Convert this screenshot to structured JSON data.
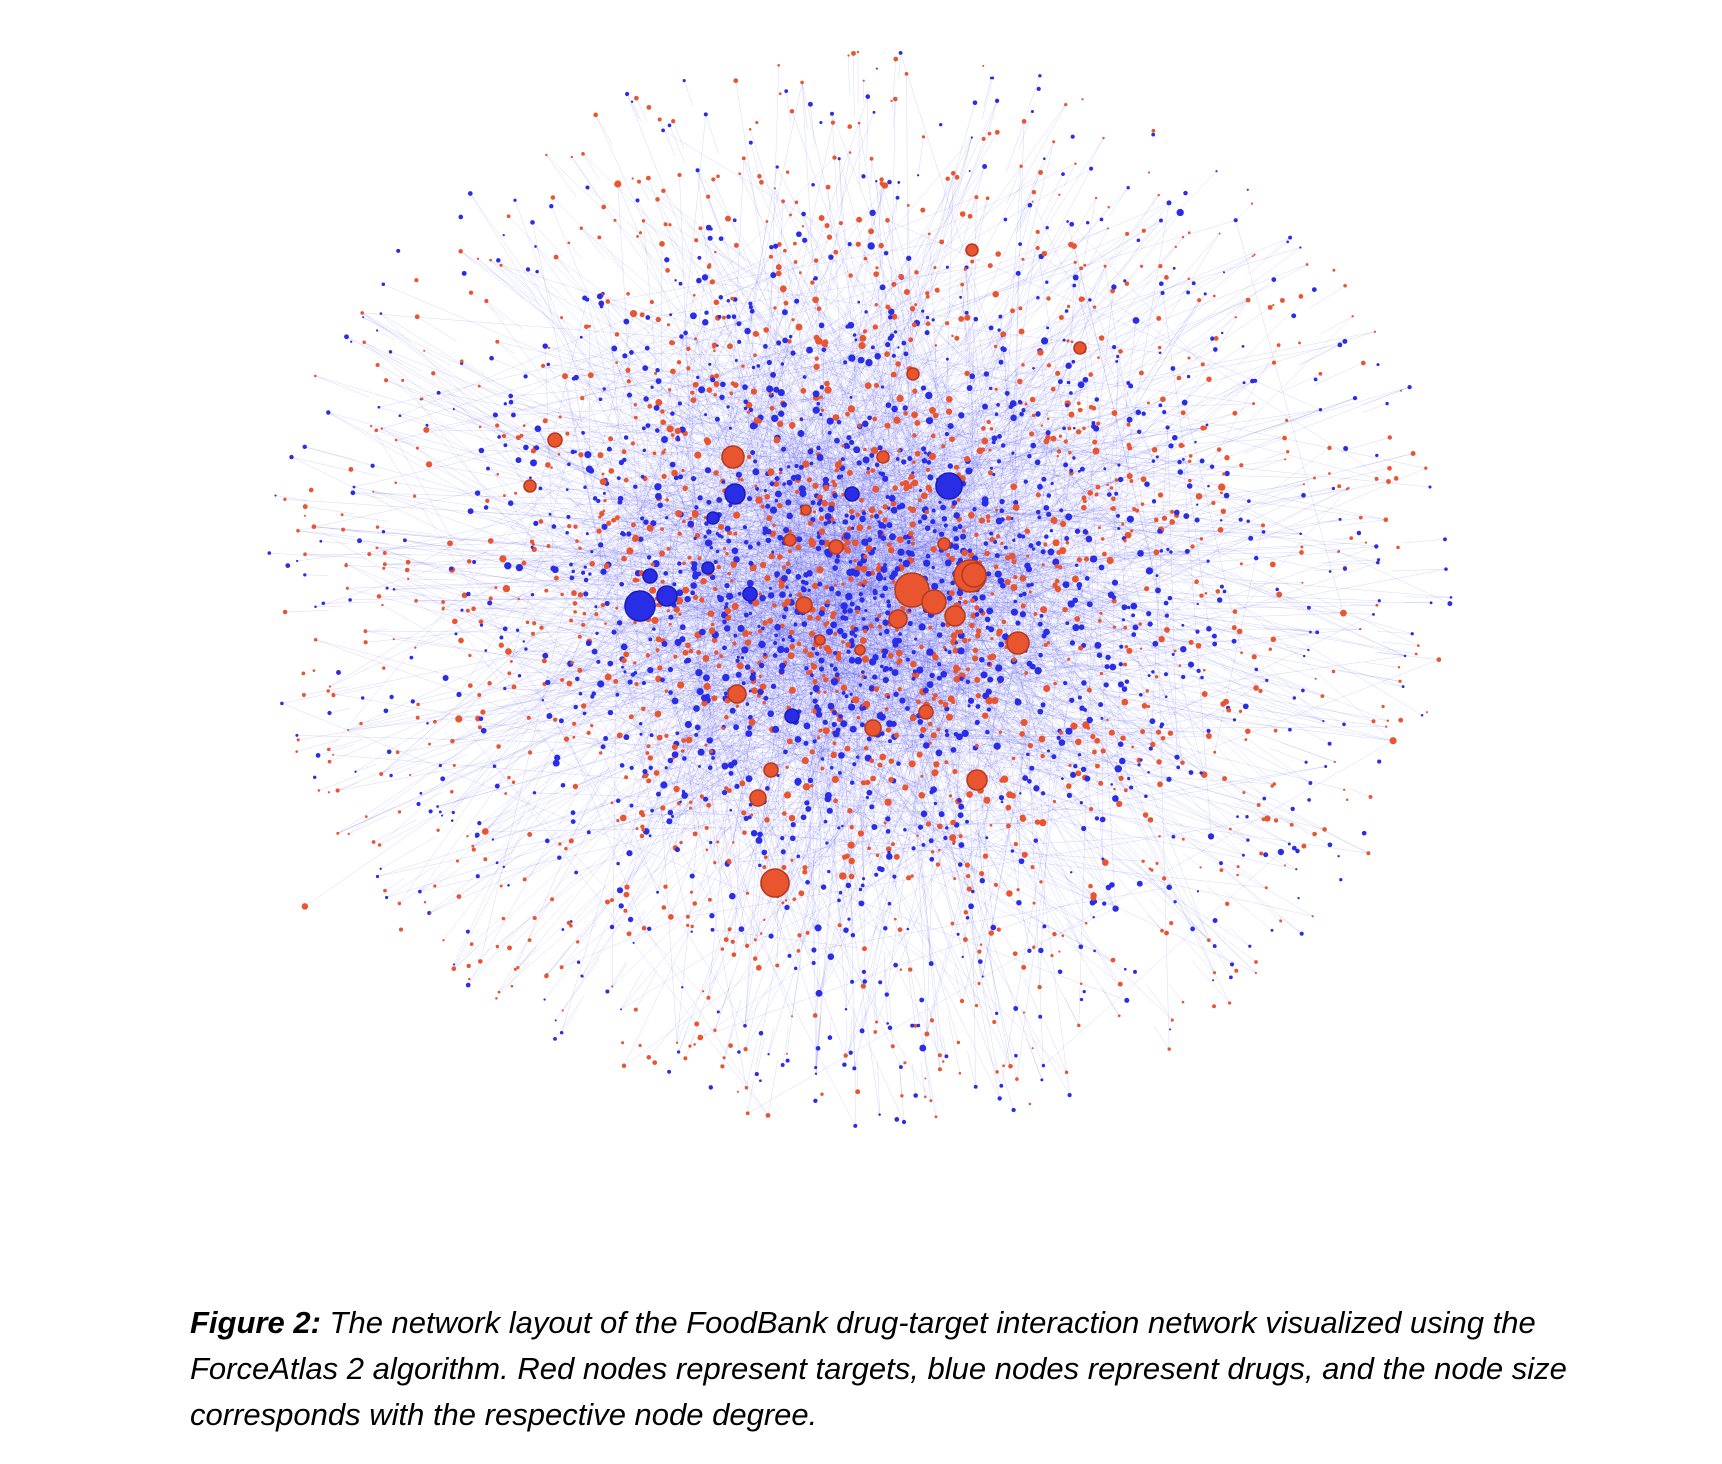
{
  "figure": {
    "label": "Figure 2:",
    "caption": " The network layout of the FoodBank drug-target interaction network visualized using the ForceAtlas 2 algorithm. Red nodes represent targets, blue nodes represent drugs, and the node size corresponds with the respective node degree."
  },
  "network": {
    "layout_algorithm": "ForceAtlas 2",
    "colors": {
      "target": "#e8552f",
      "target_stroke": "#b83a1e",
      "drug": "#2a2de6",
      "edge": "#5a5cf0",
      "background": "#ffffff"
    },
    "node_types": [
      "target",
      "drug"
    ]
  }
}
